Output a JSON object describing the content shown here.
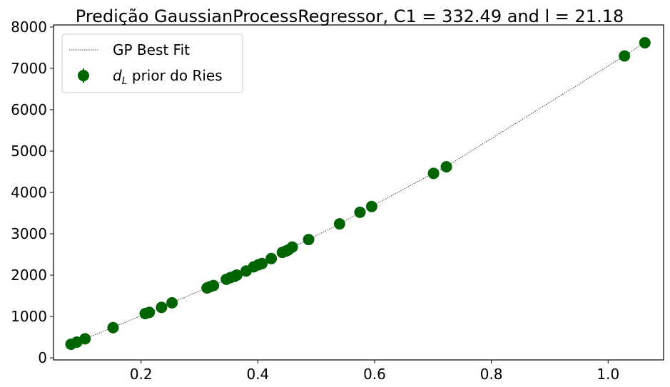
{
  "chart_data": {
    "type": "scatter",
    "title": "Predição GaussianProcessRegressor, C1 = 332.49 and l = 21.18",
    "xlabel": "",
    "ylabel": "",
    "xlim": [
      0.05,
      1.095
    ],
    "ylim": [
      -50,
      8050
    ],
    "xticks": [
      0.2,
      0.4,
      0.6,
      0.8,
      1.0
    ],
    "yticks": [
      0,
      1000,
      2000,
      3000,
      4000,
      5000,
      6000,
      7000,
      8000
    ],
    "xtick_labels": [
      "0.2",
      "0.4",
      "0.6",
      "0.8",
      "1.0"
    ],
    "ytick_labels": [
      "0",
      "1000",
      "2000",
      "3000",
      "4000",
      "5000",
      "6000",
      "7000",
      "8000"
    ],
    "grid": false,
    "legend_position": "top-left",
    "colors": {
      "points": "#006400",
      "fit_line": "#000000"
    },
    "series": [
      {
        "name": "GP Best Fit",
        "kind": "line",
        "style": "dotted",
        "x": [
          0.08,
          0.09,
          0.104,
          0.152,
          0.208,
          0.215,
          0.236,
          0.253,
          0.313,
          0.323,
          0.349,
          0.363,
          0.38,
          0.393,
          0.405,
          0.423,
          0.443,
          0.459,
          0.487,
          0.54,
          0.575,
          0.595,
          0.7,
          0.722,
          1.028,
          1.062
        ],
        "y": [
          330,
          390,
          460,
          740,
          1065,
          1100,
          1220,
          1330,
          1700,
          1760,
          1900,
          1990,
          2100,
          2200,
          2280,
          2410,
          2560,
          2680,
          2860,
          3240,
          3510,
          3660,
          4460,
          4620,
          7300,
          7620
        ]
      },
      {
        "name": "d_L prior do Ries",
        "kind": "scatter",
        "x": [
          0.08,
          0.09,
          0.104,
          0.152,
          0.207,
          0.214,
          0.235,
          0.253,
          0.313,
          0.318,
          0.324,
          0.346,
          0.353,
          0.36,
          0.364,
          0.38,
          0.393,
          0.401,
          0.407,
          0.423,
          0.442,
          0.448,
          0.452,
          0.459,
          0.487,
          0.54,
          0.575,
          0.595,
          0.701,
          0.723,
          1.028,
          1.063
        ],
        "y": [
          330,
          380,
          460,
          730,
          1070,
          1100,
          1220,
          1330,
          1690,
          1720,
          1750,
          1900,
          1940,
          1970,
          2000,
          2100,
          2200,
          2250,
          2280,
          2400,
          2550,
          2580,
          2610,
          2680,
          2860,
          3240,
          3520,
          3660,
          4460,
          4620,
          7300,
          7620
        ]
      }
    ],
    "legend": {
      "line_label": "GP Best Fit",
      "scatter_label_prefix": "d",
      "scatter_label_sub": "L",
      "scatter_label_rest": " prior do Ries"
    }
  }
}
